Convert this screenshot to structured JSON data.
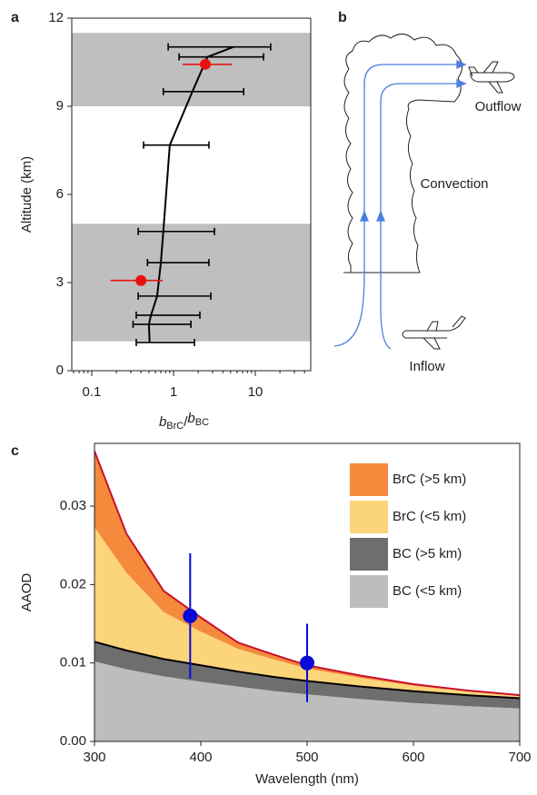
{
  "chart_data": [
    {
      "type": "profile",
      "panel_label": "a",
      "ylabel": "Altitude (km)",
      "xlabel_parts": [
        "b",
        "BrC",
        "/",
        "b",
        "BC"
      ],
      "xscale": "log",
      "xlim": [
        0.057,
        47.6
      ],
      "ylim": [
        0,
        12
      ],
      "xticks": [
        0.1,
        1,
        10
      ],
      "yticks": [
        0,
        3,
        6,
        9,
        12
      ],
      "xminor_ticks": [
        0.06,
        0.07,
        0.08,
        0.09,
        0.2,
        0.3,
        0.4,
        0.5,
        0.6,
        0.7,
        0.8,
        0.9,
        2,
        3,
        4,
        5,
        6,
        7,
        8,
        9,
        20,
        30,
        40
      ],
      "bands": [
        [
          1,
          5
        ],
        [
          9,
          11.5
        ]
      ],
      "band_color": "#bfbfbf",
      "series": [
        {
          "color": "#000000",
          "line": true,
          "values": [
            5.4,
            2.6,
            1.7,
            0.9,
            0.75,
            0.7,
            0.63,
            0.53,
            0.5,
            0.51
          ],
          "altitude": [
            11.02,
            10.68,
            9.5,
            7.68,
            4.74,
            3.68,
            2.54,
            1.89,
            1.58,
            0.96
          ],
          "low": [
            0.86,
            1.17,
            0.75,
            0.43,
            0.37,
            0.48,
            0.37,
            0.35,
            0.32,
            0.35
          ],
          "high": [
            15.4,
            12.6,
            7.2,
            2.71,
            3.16,
            2.71,
            2.86,
            2.1,
            1.63,
            1.8
          ]
        },
        {
          "color": "#e8130f",
          "line": false,
          "values": [
            2.45,
            0.4
          ],
          "altitude": [
            10.43,
            3.07
          ],
          "low": [
            1.29,
            0.17
          ],
          "high": [
            5.14,
            0.74
          ]
        }
      ]
    },
    {
      "type": "area",
      "panel_label": "c",
      "xlabel": "Wavelength (nm)",
      "ylabel": "AAOD",
      "xlim": [
        300,
        700
      ],
      "ylim": [
        0,
        0.038
      ],
      "xticks": [
        300,
        400,
        500,
        600,
        700
      ],
      "yticks": [
        {
          "value": 0,
          "label": "0.00"
        },
        {
          "value": 0.01,
          "label": "0.01"
        },
        {
          "value": 0.02,
          "label": "0.02"
        },
        {
          "value": 0.03,
          "label": "0.03"
        }
      ],
      "legend": "upper right",
      "x": [
        300,
        330,
        365,
        400,
        435,
        470,
        500,
        550,
        600,
        650,
        700
      ],
      "series": [
        {
          "name": "BC (<5 km)",
          "color": "#bdbdbd",
          "values": [
            0.0102,
            0.0092,
            0.0083,
            0.0076,
            0.007,
            0.0064,
            0.006,
            0.0054,
            0.0049,
            0.0045,
            0.0042
          ]
        },
        {
          "name": "BC (>5 km)",
          "color": "#6e6e6e",
          "edge_color": "#000000",
          "values": [
            0.0025,
            0.0024,
            0.0022,
            0.0021,
            0.0019,
            0.0018,
            0.0017,
            0.0016,
            0.0015,
            0.0014,
            0.0013
          ]
        },
        {
          "name": "BrC (<5 km)",
          "color": "#fcd57a",
          "values": [
            0.0146,
            0.0099,
            0.006,
            0.0043,
            0.0029,
            0.0022,
            0.0016,
            0.0011,
            0.0007,
            0.0005,
            0.0003
          ]
        },
        {
          "name": "BrC (>5 km)",
          "color": "#f58a3c",
          "edge_color": "#c8102e",
          "values": [
            0.0097,
            0.005,
            0.0027,
            0.0018,
            0.0008,
            0.0006,
            0.0004,
            0.0003,
            0.0002,
            0.0001,
            0.0001
          ]
        }
      ],
      "points": {
        "color": "#0a0ad8",
        "x": [
          390,
          500
        ],
        "values": [
          0.016,
          0.01
        ],
        "low": [
          0.008,
          0.005
        ],
        "high": [
          0.024,
          0.015
        ]
      }
    }
  ],
  "diagram": {
    "label": "b",
    "outflow": "Outflow",
    "convection": "Convection",
    "inflow": "Inflow"
  }
}
